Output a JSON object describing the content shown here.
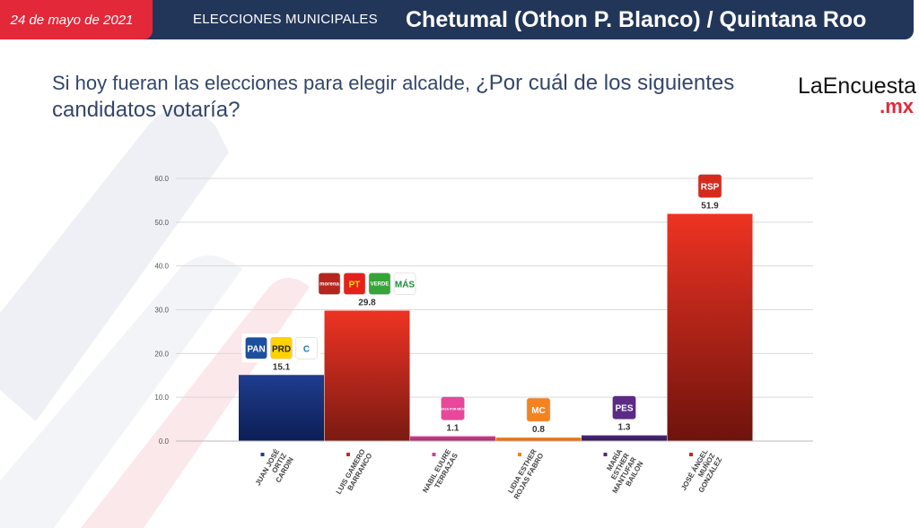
{
  "header": {
    "date": "24 de mayo de 2021",
    "section": "ELECCIONES MUNICIPALES",
    "location": "Chetumal (Othon P. Blanco) / Quintana Roo"
  },
  "question": {
    "lead": "Si hoy fueran las elecciones para elegir alcalde, ",
    "emphasis": "¿Por cuál de los siguientes candidatos votaría?"
  },
  "brand": {
    "name": "LaEncuesta",
    "tld": ".mx"
  },
  "colors": {
    "header_bg": "#22365a",
    "date_bg": "#e3283a",
    "question_text": "#34466b"
  },
  "chart_data": {
    "type": "bar",
    "ylim": [
      0,
      60
    ],
    "yticks": [
      "0.0",
      "10.0",
      "20.0",
      "30.0",
      "40.0",
      "50.0",
      "60.0"
    ],
    "grid": true,
    "categories": [
      [
        "JUAN JOSÉ",
        "ORTIZ",
        "CARDIN"
      ],
      [
        "LUIS GAMERO",
        "BARRANCO"
      ],
      [
        "NABIL EUURE",
        "TERRAZAS"
      ],
      [
        "LIDIA ESTHER",
        "ROJAS FABRO"
      ],
      [
        "MARÍA",
        "ESTHER",
        "MANTUFAR",
        "BAILON"
      ],
      [
        "JOSÉ ÁNGEL",
        "MUÑOZ",
        "GONZÁLEZ"
      ]
    ],
    "values": [
      15.1,
      29.8,
      1.1,
      0.8,
      1.3,
      51.9
    ],
    "labels": [
      "15.1",
      "29.8",
      "1.1",
      "0.8",
      "1.3",
      "51.9"
    ],
    "bar_colors": [
      [
        "#1f3d8f",
        "#0c1e55"
      ],
      [
        "#ee3323",
        "#7a1a12"
      ],
      [
        "#d13f8e",
        "#a12a6d"
      ],
      [
        "#f5821f",
        "#d9650a"
      ],
      [
        "#4b2a77",
        "#2f1751"
      ],
      [
        "#ee3323",
        "#6e130d"
      ]
    ],
    "marker_colors": [
      "#1f3d8f",
      "#c8281e",
      "#d13f8e",
      "#f5821f",
      "#4b2a77",
      "#c8281e"
    ],
    "party_logos": [
      [
        {
          "text": "PAN",
          "bg": "#1d4f9f",
          "fg": "#ffffff",
          "name": "pan-logo"
        },
        {
          "text": "PRD",
          "bg": "#ffd200",
          "fg": "#222222",
          "name": "prd-logo"
        },
        {
          "text": "C",
          "bg": "#ffffff",
          "fg": "#1c72b8",
          "name": "confianza-logo"
        }
      ],
      [
        {
          "text": "morena",
          "bg": "#b5261e",
          "fg": "#ffffff",
          "name": "morena-logo"
        },
        {
          "text": "PT",
          "bg": "#e4211b",
          "fg": "#ffde00",
          "name": "pt-logo"
        },
        {
          "text": "VERDE",
          "bg": "#36a538",
          "fg": "#ffffff",
          "name": "verde-logo"
        },
        {
          "text": "MÁS",
          "bg": "#ffffff",
          "fg": "#1d8a3d",
          "name": "mas-logo"
        }
      ],
      [
        {
          "text": "FUERZA POR MÉXICO",
          "bg": "#e8479c",
          "fg": "#ffffff",
          "name": "fuerza-por-mexico-logo"
        }
      ],
      [
        {
          "text": "MC",
          "bg": "#f5821f",
          "fg": "#ffffff",
          "name": "movimiento-ciudadano-logo"
        }
      ],
      [
        {
          "text": "PES",
          "bg": "#5b2b86",
          "fg": "#ffffff",
          "name": "pes-logo"
        }
      ],
      [
        {
          "text": "RSP",
          "bg": "#d52b1e",
          "fg": "#ffffff",
          "name": "rsp-logo"
        }
      ]
    ]
  }
}
